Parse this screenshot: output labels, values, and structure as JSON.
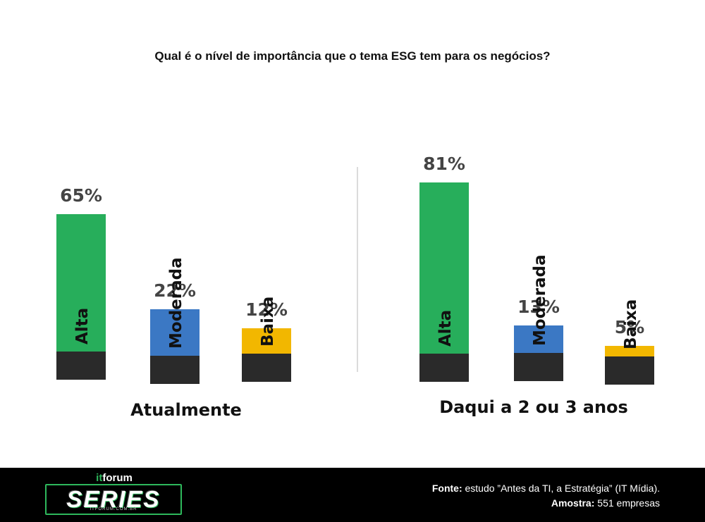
{
  "title": "Qual é o nível de importância que o tema ESG tem para os negócios?",
  "chart_data": {
    "type": "bar",
    "title": "Qual é o nível de importância que o tema ESG tem para os negócios?",
    "unit": "%",
    "colors": {
      "Alta": "#27ae5b",
      "Moderada": "#3b78c4",
      "Baixa": "#f2b700",
      "base": "#2a2a2a",
      "value_text": "#444444"
    },
    "groups": [
      {
        "name": "Atualmente",
        "categories": [
          "Alta",
          "Moderada",
          "Baixa"
        ],
        "values": [
          65,
          22,
          12
        ],
        "labels": [
          "65%",
          "22%",
          "12%"
        ]
      },
      {
        "name": "Daqui a 2 ou 3 anos",
        "categories": [
          "Alta",
          "Moderada",
          "Baixa"
        ],
        "values": [
          81,
          13,
          5
        ],
        "labels": [
          "81%",
          "13%",
          "5%"
        ]
      }
    ]
  },
  "footer": {
    "logo_top_it": "it",
    "logo_top_rest": "forum",
    "logo_main": "SERIES",
    "logo_url": "ITFORUM.COM.BR",
    "source_label": "Fonte:",
    "source_text": " estudo ”Antes da TI, a Estratégia” (IT Mídia).",
    "sample_label": "Amostra:",
    "sample_text": " 551 empresas"
  }
}
